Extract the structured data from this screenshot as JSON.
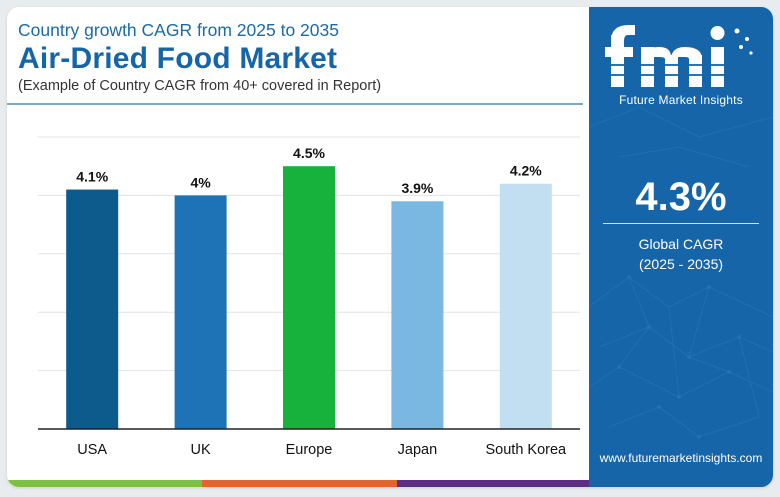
{
  "header": {
    "subtitle": "Country growth CAGR from 2025 to 2035",
    "title": "Air-Dried Food Market",
    "note": "(Example of Country CAGR from 40+ covered in Report)"
  },
  "brand": {
    "logo_letters": "fmi",
    "logo_tagline": "Future Market Insights",
    "website": "www.futuremarketinsights.com",
    "panel_color": "#1565a8"
  },
  "summary": {
    "value": "4.3%",
    "label": "Global CAGR",
    "period": "(2025 - 2035)"
  },
  "footer_colors": [
    "#7dc142",
    "#e8622c",
    "#5b2d83"
  ],
  "chart_data": {
    "type": "bar",
    "categories": [
      "USA",
      "UK",
      "Europe",
      "Japan",
      "South Korea"
    ],
    "values": [
      4.1,
      4.0,
      4.5,
      3.9,
      4.2
    ],
    "value_labels": [
      "4.1%",
      "4%",
      "4.5%",
      "3.9%",
      "4.2%"
    ],
    "colors": [
      "#0d5a8c",
      "#1d73b5",
      "#16b23b",
      "#7ab8e2",
      "#c2dff2"
    ],
    "ylim": [
      0,
      5
    ],
    "grid": true,
    "title": "",
    "xlabel": "",
    "ylabel": ""
  }
}
